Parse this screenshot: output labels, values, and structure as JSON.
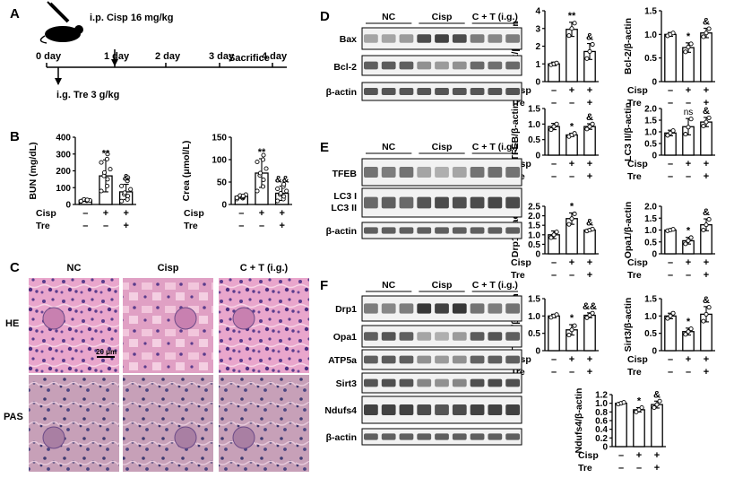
{
  "panels": {
    "A": "A",
    "B": "B",
    "C": "C",
    "D": "D",
    "E": "E",
    "F": "F"
  },
  "timeline": {
    "cisp_text": "i.p. Cisp 16 mg/kg",
    "tre_text": "i.g. Tre 3 g/kg",
    "sacrifice": "Sacrifice",
    "days": [
      "0 day",
      "1 day",
      "2 day",
      "3 day",
      "4 day"
    ]
  },
  "groups": {
    "nc": "NC",
    "cisp": "Cisp",
    "ct": "C + T (i.g.)"
  },
  "row_labels": {
    "cisp": "Cisp",
    "tre": "Tre"
  },
  "signs": {
    "cisp": [
      "–",
      "+",
      "+"
    ],
    "tre": [
      "–",
      "–",
      "+"
    ]
  },
  "stains": {
    "he": "HE",
    "pas": "PAS"
  },
  "scalebar": "20 μm",
  "blots": {
    "D": [
      "Bax",
      "Bcl-2",
      "β-actin"
    ],
    "E": [
      "TFEB",
      "LC3 I",
      "LC3 II",
      "β-actin"
    ],
    "F": [
      "Drp1",
      "Opa1",
      "ATP5a",
      "Sirt3",
      "Ndufs4",
      "β-actin"
    ]
  },
  "chart_data": [
    {
      "type": "bar",
      "panel": "B",
      "ylabel": "BUN (mg/dL)",
      "ylim": [
        0,
        400
      ],
      "yticks": [
        "0",
        "100",
        "200",
        "300",
        "400"
      ],
      "categories": [
        "NC",
        "Cisp",
        "C + T (i.g.)"
      ],
      "values": [
        25,
        170,
        75
      ],
      "errors": [
        5,
        95,
        45
      ],
      "significance": [
        "",
        "**",
        "&"
      ],
      "points": [
        [
          18,
          22,
          25,
          28,
          30,
          24,
          20,
          26,
          27
        ],
        [
          80,
          110,
          150,
          170,
          190,
          210,
          250,
          270,
          300
        ],
        [
          20,
          30,
          50,
          60,
          70,
          90,
          110,
          140,
          160
        ]
      ]
    },
    {
      "type": "bar",
      "panel": "B",
      "ylabel": "Crea (μmol/L)",
      "ylim": [
        0,
        150
      ],
      "yticks": [
        "0",
        "50",
        "100",
        "150"
      ],
      "categories": [
        "NC",
        "Cisp",
        "C + T (i.g.)"
      ],
      "values": [
        18,
        70,
        25
      ],
      "errors": [
        4,
        32,
        16
      ],
      "significance": [
        "",
        "**",
        "&&"
      ],
      "points": [
        [
          12,
          14,
          16,
          18,
          20,
          22,
          15,
          17,
          19
        ],
        [
          30,
          40,
          55,
          65,
          70,
          80,
          95,
          100,
          110
        ],
        [
          8,
          12,
          18,
          22,
          25,
          30,
          35,
          40,
          45
        ]
      ]
    },
    {
      "type": "bar",
      "panel": "D",
      "ylabel": "Bax/β-actin",
      "ylim": [
        0,
        4
      ],
      "yticks": [
        "0",
        "1",
        "2",
        "3",
        "4"
      ],
      "categories": [
        "NC",
        "Cisp",
        "C + T (i.g.)"
      ],
      "values": [
        1.0,
        2.95,
        1.7
      ],
      "errors": [
        0.1,
        0.4,
        0.45
      ],
      "significance": [
        "",
        "**",
        "&"
      ],
      "points": [
        [
          0.95,
          1.0,
          1.05
        ],
        [
          2.6,
          3.0,
          3.3
        ],
        [
          1.3,
          1.7,
          2.1
        ]
      ]
    },
    {
      "type": "bar",
      "panel": "D",
      "ylabel": "Bcl-2/β-actin",
      "ylim": [
        0,
        1.5
      ],
      "yticks": [
        "0",
        "0.5",
        "1.0",
        "1.5"
      ],
      "categories": [
        "NC",
        "Cisp",
        "C + T (i.g.)"
      ],
      "values": [
        1.0,
        0.72,
        1.03
      ],
      "errors": [
        0.04,
        0.1,
        0.1
      ],
      "significance": [
        "",
        "*",
        "&"
      ],
      "points": [
        [
          0.97,
          1.0,
          1.03
        ],
        [
          0.63,
          0.73,
          0.8
        ],
        [
          0.95,
          1.03,
          1.12
        ]
      ]
    },
    {
      "type": "bar",
      "panel": "E",
      "ylabel": "TFEB/β-actin",
      "ylim": [
        0,
        1.5
      ],
      "yticks": [
        "0",
        "0.5",
        "1.0",
        "1.5"
      ],
      "categories": [
        "NC",
        "Cisp",
        "C + T (i.g.)"
      ],
      "values": [
        0.92,
        0.65,
        0.92
      ],
      "errors": [
        0.1,
        0.05,
        0.09
      ],
      "significance": [
        "",
        "*",
        "&"
      ],
      "points": [
        [
          0.82,
          0.92,
          1.0
        ],
        [
          0.6,
          0.65,
          0.7
        ],
        [
          0.84,
          0.92,
          1.0
        ]
      ]
    },
    {
      "type": "bar",
      "panel": "E",
      "ylabel": "LC3 II/β-actin",
      "ylim": [
        0,
        2.0
      ],
      "yticks": [
        "0",
        "0.5",
        "1.0",
        "1.5",
        "2.0"
      ],
      "categories": [
        "NC",
        "Cisp",
        "C + T (i.g.)"
      ],
      "values": [
        0.95,
        1.22,
        1.42
      ],
      "errors": [
        0.12,
        0.35,
        0.2
      ],
      "significance": [
        "",
        "ns",
        "&"
      ],
      "points": [
        [
          0.85,
          0.95,
          1.05
        ],
        [
          0.9,
          1.2,
          1.55
        ],
        [
          1.25,
          1.42,
          1.6
        ]
      ]
    },
    {
      "type": "bar",
      "panel": "E",
      "ylabel": "Drp1/β-actin",
      "ylim": [
        0,
        2.5
      ],
      "yticks": [
        "0",
        "0.5",
        "1.0",
        "1.5",
        "2.0",
        "2.5"
      ],
      "categories": [
        "NC",
        "Cisp",
        "C + T (i.g.)"
      ],
      "values": [
        1.0,
        1.85,
        1.25
      ],
      "errors": [
        0.2,
        0.3,
        0.05
      ],
      "significance": [
        "",
        "*",
        "&"
      ],
      "points": [
        [
          0.85,
          1.0,
          1.15
        ],
        [
          1.55,
          1.85,
          2.1
        ],
        [
          1.2,
          1.25,
          1.3
        ]
      ]
    },
    {
      "type": "bar",
      "panel": "E",
      "ylabel": "Opa1/β-actin",
      "ylim": [
        0,
        2.0
      ],
      "yticks": [
        "0",
        "0.5",
        "1.0",
        "1.5",
        "2.0"
      ],
      "categories": [
        "NC",
        "Cisp",
        "C + T (i.g.)"
      ],
      "values": [
        1.0,
        0.55,
        1.22
      ],
      "errors": [
        0.04,
        0.14,
        0.25
      ],
      "significance": [
        "",
        "*",
        "&"
      ],
      "points": [
        [
          0.97,
          1.0,
          1.03
        ],
        [
          0.42,
          0.55,
          0.68
        ],
        [
          1.0,
          1.22,
          1.45
        ]
      ]
    },
    {
      "type": "bar",
      "panel": "F",
      "ylabel": "ATP5a/β-actin",
      "ylim": [
        0,
        1.5
      ],
      "yticks": [
        "0",
        "0.5",
        "1.0",
        "1.5"
      ],
      "categories": [
        "NC",
        "Cisp",
        "C + T (i.g.)"
      ],
      "values": [
        1.0,
        0.6,
        1.02
      ],
      "errors": [
        0.05,
        0.15,
        0.07
      ],
      "significance": [
        "",
        "*",
        "&&"
      ],
      "points": [
        [
          0.96,
          1.0,
          1.04
        ],
        [
          0.45,
          0.6,
          0.72
        ],
        [
          0.95,
          1.02,
          1.08
        ]
      ]
    },
    {
      "type": "bar",
      "panel": "F",
      "ylabel": "Sirt3/β-actin",
      "ylim": [
        0,
        1.5
      ],
      "yticks": [
        "0",
        "0.5",
        "1.0",
        "1.5"
      ],
      "categories": [
        "NC",
        "Cisp",
        "C + T (i.g.)"
      ],
      "values": [
        1.0,
        0.55,
        1.05
      ],
      "errors": [
        0.08,
        0.1,
        0.22
      ],
      "significance": [
        "",
        "*",
        "&"
      ],
      "points": [
        [
          0.93,
          1.0,
          1.08
        ],
        [
          0.47,
          0.55,
          0.63
        ],
        [
          0.85,
          1.05,
          1.25
        ]
      ]
    },
    {
      "type": "bar",
      "panel": "F",
      "ylabel": "Ndufs4/β-actin",
      "ylim": [
        0,
        1.2
      ],
      "yticks": [
        "0",
        "0.2",
        "0.4",
        "0.6",
        "0.8",
        "1.0",
        "1.2"
      ],
      "categories": [
        "NC",
        "Cisp",
        "C + T (i.g.)"
      ],
      "values": [
        1.0,
        0.85,
        0.97
      ],
      "errors": [
        0.02,
        0.05,
        0.08
      ],
      "significance": [
        "",
        "*",
        "&"
      ],
      "points": [
        [
          0.98,
          1.0,
          1.02
        ],
        [
          0.8,
          0.85,
          0.9
        ],
        [
          0.9,
          0.97,
          1.05
        ]
      ]
    }
  ]
}
